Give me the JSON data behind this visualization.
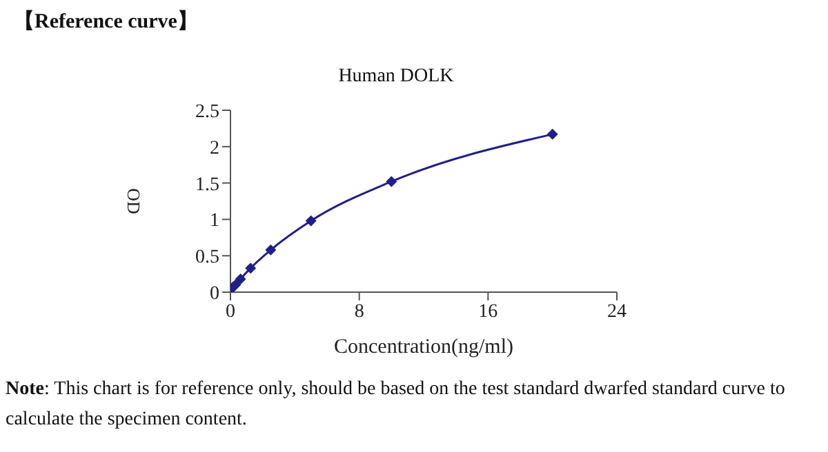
{
  "chart_data": {
    "type": "line",
    "title": "Human DOLK",
    "xlabel": "Concentration(ng/ml)",
    "ylabel": "OD",
    "annotations": [
      "【Reference curve】",
      "Note: This chart is for reference only, should be based on the test standard dwarfed standard curve to calculate the specimen content."
    ],
    "x": [
      0,
      0.156,
      0.3125,
      0.625,
      1.25,
      2.5,
      5,
      10,
      20
    ],
    "series": [
      {
        "color": "#1f1f8a",
        "values": [
          0.03,
          0.07,
          0.1,
          0.18,
          0.33,
          0.58,
          0.98,
          1.52,
          2.17
        ]
      }
    ],
    "xlim": [
      0,
      24
    ],
    "xticks": [
      0,
      8,
      16,
      24
    ],
    "ylim": [
      0,
      2.5
    ],
    "yticks": [
      0,
      0.5,
      1,
      1.5,
      2,
      2.5
    ],
    "grid": false,
    "legend": false,
    "marker": "diamond",
    "line_style": "solid"
  }
}
